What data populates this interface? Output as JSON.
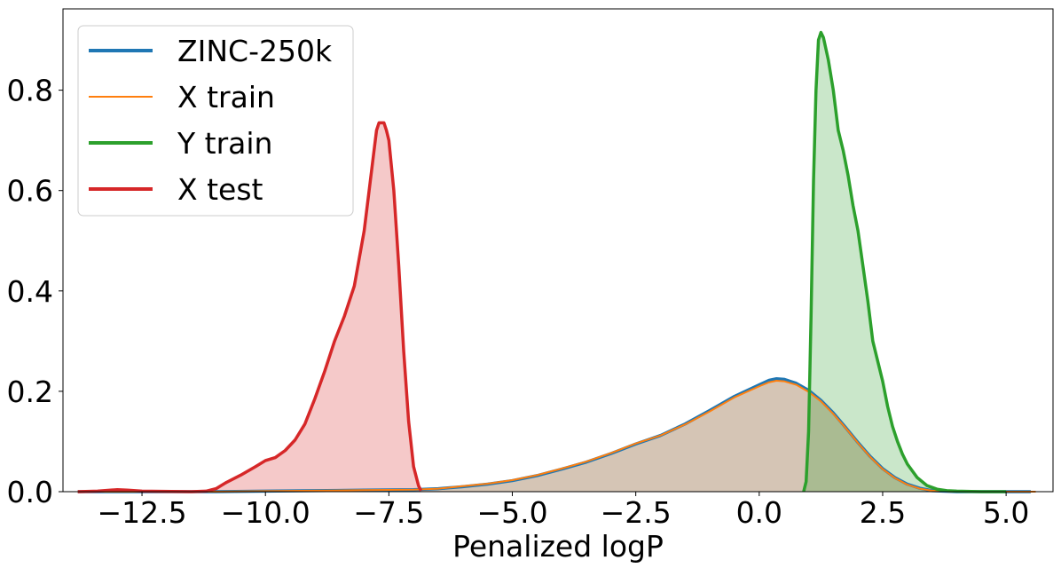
{
  "chart_data": {
    "type": "area",
    "title": "",
    "xlabel": "Penalized logP",
    "ylabel": "",
    "xlim": [
      -14.1,
      5.95
    ],
    "ylim": [
      0,
      0.962
    ],
    "grid": false,
    "legend_position": "top-left",
    "x_ticks": [
      -12.5,
      -10.0,
      -7.5,
      -5.0,
      -2.5,
      0.0,
      2.5,
      5.0
    ],
    "x_tick_labels": [
      "−12.5",
      "−10.0",
      "−7.5",
      "−5.0",
      "−2.5",
      "0.0",
      "2.5",
      "5.0"
    ],
    "y_ticks": [
      0.0,
      0.2,
      0.4,
      0.6,
      0.8
    ],
    "y_tick_labels": [
      "0.0",
      "0.2",
      "0.4",
      "0.6",
      "0.8"
    ],
    "series": [
      {
        "name": "ZINC-250k",
        "color": "#1f77b4",
        "stroke_width": 3.5,
        "fill": true,
        "points": [
          [
            -13.8,
            0.0
          ],
          [
            -11.0,
            0.0
          ],
          [
            -10.0,
            0.001
          ],
          [
            -9.0,
            0.002
          ],
          [
            -8.0,
            0.003
          ],
          [
            -7.0,
            0.004
          ],
          [
            -6.5,
            0.006
          ],
          [
            -6.0,
            0.01
          ],
          [
            -5.5,
            0.015
          ],
          [
            -5.0,
            0.022
          ],
          [
            -4.5,
            0.032
          ],
          [
            -4.0,
            0.045
          ],
          [
            -3.5,
            0.059
          ],
          [
            -3.0,
            0.076
          ],
          [
            -2.5,
            0.095
          ],
          [
            -2.0,
            0.112
          ],
          [
            -1.5,
            0.135
          ],
          [
            -1.0,
            0.162
          ],
          [
            -0.5,
            0.19
          ],
          [
            0.0,
            0.213
          ],
          [
            0.2,
            0.222
          ],
          [
            0.35,
            0.225
          ],
          [
            0.5,
            0.224
          ],
          [
            0.75,
            0.216
          ],
          [
            1.0,
            0.202
          ],
          [
            1.25,
            0.182
          ],
          [
            1.5,
            0.157
          ],
          [
            1.75,
            0.128
          ],
          [
            2.0,
            0.098
          ],
          [
            2.25,
            0.07
          ],
          [
            2.5,
            0.046
          ],
          [
            2.75,
            0.028
          ],
          [
            3.0,
            0.015
          ],
          [
            3.25,
            0.007
          ],
          [
            3.5,
            0.002
          ],
          [
            4.0,
            0.0
          ],
          [
            5.5,
            0.0
          ]
        ]
      },
      {
        "name": "X train",
        "color": "#ff7f0e",
        "stroke_width": 2,
        "fill": true,
        "points": [
          [
            -13.8,
            0.0
          ],
          [
            -11.0,
            0.0
          ],
          [
            -10.0,
            0.001
          ],
          [
            -9.0,
            0.002
          ],
          [
            -8.0,
            0.003
          ],
          [
            -7.0,
            0.004
          ],
          [
            -6.5,
            0.006
          ],
          [
            -6.0,
            0.011
          ],
          [
            -5.5,
            0.016
          ],
          [
            -5.0,
            0.023
          ],
          [
            -4.5,
            0.033
          ],
          [
            -4.0,
            0.046
          ],
          [
            -3.5,
            0.06
          ],
          [
            -3.0,
            0.077
          ],
          [
            -2.5,
            0.096
          ],
          [
            -2.0,
            0.112
          ],
          [
            -1.5,
            0.134
          ],
          [
            -1.0,
            0.16
          ],
          [
            -0.5,
            0.188
          ],
          [
            0.0,
            0.21
          ],
          [
            0.2,
            0.218
          ],
          [
            0.35,
            0.221
          ],
          [
            0.5,
            0.22
          ],
          [
            0.75,
            0.213
          ],
          [
            1.0,
            0.199
          ],
          [
            1.25,
            0.18
          ],
          [
            1.5,
            0.155
          ],
          [
            1.75,
            0.127
          ],
          [
            2.0,
            0.097
          ],
          [
            2.25,
            0.069
          ],
          [
            2.5,
            0.045
          ],
          [
            2.75,
            0.027
          ],
          [
            3.0,
            0.014
          ],
          [
            3.25,
            0.006
          ],
          [
            3.5,
            0.002
          ],
          [
            4.0,
            0.0
          ],
          [
            5.6,
            0.0
          ]
        ]
      },
      {
        "name": "Y train",
        "color": "#2ca02c",
        "stroke_width": 3.5,
        "fill": true,
        "points": [
          [
            0.9,
            0.0
          ],
          [
            0.95,
            0.02
          ],
          [
            1.0,
            0.12
          ],
          [
            1.05,
            0.35
          ],
          [
            1.1,
            0.62
          ],
          [
            1.15,
            0.8
          ],
          [
            1.2,
            0.9
          ],
          [
            1.25,
            0.915
          ],
          [
            1.3,
            0.905
          ],
          [
            1.4,
            0.86
          ],
          [
            1.5,
            0.8
          ],
          [
            1.6,
            0.72
          ],
          [
            1.7,
            0.68
          ],
          [
            1.8,
            0.63
          ],
          [
            1.9,
            0.57
          ],
          [
            2.0,
            0.52
          ],
          [
            2.1,
            0.45
          ],
          [
            2.2,
            0.38
          ],
          [
            2.3,
            0.3
          ],
          [
            2.4,
            0.26
          ],
          [
            2.5,
            0.22
          ],
          [
            2.6,
            0.17
          ],
          [
            2.7,
            0.13
          ],
          [
            2.8,
            0.1
          ],
          [
            2.9,
            0.075
          ],
          [
            3.0,
            0.055
          ],
          [
            3.2,
            0.028
          ],
          [
            3.4,
            0.012
          ],
          [
            3.6,
            0.005
          ],
          [
            3.8,
            0.002
          ],
          [
            4.0,
            0.001
          ],
          [
            4.5,
            0.0
          ],
          [
            5.0,
            0.0
          ]
        ]
      },
      {
        "name": "X test",
        "color": "#d62728",
        "stroke_width": 3.5,
        "fill": true,
        "points": [
          [
            -13.8,
            0.0
          ],
          [
            -13.4,
            0.001
          ],
          [
            -13.0,
            0.004
          ],
          [
            -12.8,
            0.003
          ],
          [
            -12.5,
            0.001
          ],
          [
            -11.5,
            0.0
          ],
          [
            -11.2,
            0.001
          ],
          [
            -11.0,
            0.006
          ],
          [
            -10.8,
            0.018
          ],
          [
            -10.5,
            0.033
          ],
          [
            -10.2,
            0.05
          ],
          [
            -10.0,
            0.062
          ],
          [
            -9.8,
            0.068
          ],
          [
            -9.6,
            0.082
          ],
          [
            -9.4,
            0.103
          ],
          [
            -9.2,
            0.135
          ],
          [
            -9.0,
            0.185
          ],
          [
            -8.8,
            0.24
          ],
          [
            -8.6,
            0.3
          ],
          [
            -8.4,
            0.35
          ],
          [
            -8.2,
            0.41
          ],
          [
            -8.0,
            0.52
          ],
          [
            -7.9,
            0.6
          ],
          [
            -7.8,
            0.68
          ],
          [
            -7.75,
            0.72
          ],
          [
            -7.7,
            0.735
          ],
          [
            -7.6,
            0.735
          ],
          [
            -7.55,
            0.72
          ],
          [
            -7.5,
            0.7
          ],
          [
            -7.4,
            0.6
          ],
          [
            -7.3,
            0.45
          ],
          [
            -7.2,
            0.28
          ],
          [
            -7.1,
            0.14
          ],
          [
            -7.0,
            0.05
          ],
          [
            -6.9,
            0.012
          ],
          [
            -6.85,
            0.002
          ]
        ]
      }
    ]
  }
}
